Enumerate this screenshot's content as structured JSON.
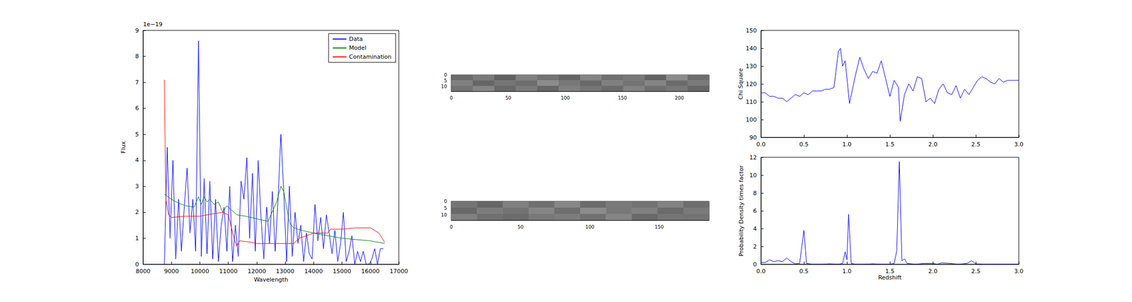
{
  "chart_data": [
    {
      "type": "line",
      "xlabel": "Wavelength",
      "ylabel": "Flux",
      "annotations": [
        "1e−19"
      ],
      "xlim": [
        8000,
        17000
      ],
      "xticks": [
        8000,
        9000,
        10000,
        11000,
        12000,
        13000,
        14000,
        15000,
        16000,
        17000
      ],
      "ylim": [
        0,
        9
      ],
      "yticks": [
        0,
        1,
        2,
        3,
        4,
        5,
        6,
        7,
        8,
        9
      ],
      "grid": false,
      "legend": "upper right",
      "series": [
        {
          "name": "Data",
          "color": "#0000ff",
          "x": [
            8750,
            8850,
            8950,
            9050,
            9150,
            9250,
            9350,
            9450,
            9550,
            9650,
            9750,
            9850,
            9950,
            10050,
            10150,
            10250,
            10350,
            10450,
            10550,
            10650,
            10750,
            10850,
            10950,
            11050,
            11150,
            11250,
            11350,
            11450,
            11550,
            11650,
            11750,
            11850,
            11950,
            12050,
            12150,
            12250,
            12350,
            12450,
            12550,
            12650,
            12750,
            12850,
            12950,
            13050,
            13150,
            13250,
            13350,
            13450,
            13550,
            13650,
            13750,
            13850,
            13950,
            14050,
            14150,
            14250,
            14350,
            14450,
            14550,
            14650,
            14750,
            14850,
            14950,
            15050,
            15150,
            15250,
            15350,
            15450,
            15550,
            15650,
            15750,
            15850,
            15950,
            16050,
            16150,
            16250,
            16350,
            16450
          ],
          "values": [
            0.0,
            4.5,
            1.0,
            4.0,
            0.2,
            2.5,
            0.5,
            2.2,
            3.7,
            1.2,
            2.5,
            0.5,
            8.6,
            0.3,
            3.3,
            0.4,
            3.2,
            0.2,
            2.5,
            0.1,
            1.5,
            2.2,
            0.5,
            3.0,
            0.1,
            1.5,
            0.3,
            3.2,
            2.5,
            4.1,
            1.0,
            3.5,
            0.5,
            4.0,
            1.8,
            0.2,
            2.2,
            0.8,
            2.8,
            0.5,
            2.5,
            5.0,
            2.8,
            0.1,
            3.0,
            0.3,
            2.0,
            0.8,
            1.5,
            0.1,
            1.2,
            0.4,
            0.2,
            2.3,
            0.9,
            1.8,
            0.6,
            1.9,
            1.2,
            0.4,
            1.3,
            0.1,
            0.8,
            2.0,
            0.1,
            0.5,
            1.1,
            0.0,
            0.5,
            0.1,
            0.5,
            0.0,
            0.0,
            0.2,
            0.6,
            0.0,
            0.6,
            0.6
          ]
        },
        {
          "name": "Model",
          "color": "#008000",
          "x": [
            8750,
            9000,
            9250,
            9500,
            9800,
            9950,
            10050,
            10150,
            10250,
            10350,
            10500,
            10650,
            10800,
            10950,
            11100,
            11300,
            11600,
            12000,
            12400,
            12700,
            12850,
            12950,
            13050,
            13150,
            13300,
            13600,
            14000,
            14500,
            15000,
            15500,
            16000,
            16500
          ],
          "values": [
            2.7,
            2.5,
            2.35,
            2.25,
            2.2,
            2.6,
            2.3,
            2.6,
            2.4,
            2.5,
            2.3,
            2.4,
            2.0,
            2.25,
            2.1,
            1.9,
            1.85,
            1.75,
            1.65,
            2.4,
            3.0,
            2.8,
            2.2,
            1.6,
            1.4,
            1.3,
            1.2,
            1.1,
            1.0,
            0.95,
            0.9,
            0.8
          ]
        },
        {
          "name": "Contamination",
          "color": "#ff0000",
          "x": [
            8750,
            8800,
            8900,
            9000,
            9500,
            10000,
            10500,
            10800,
            11000,
            11200,
            11300,
            11400,
            11800,
            12000,
            13000,
            13300,
            13500,
            14000,
            14500,
            14600,
            15000,
            15500,
            16000,
            16300,
            16500
          ],
          "values": [
            7.1,
            2.5,
            1.9,
            1.8,
            1.85,
            1.85,
            1.95,
            2.0,
            1.9,
            1.0,
            0.7,
            0.9,
            0.85,
            0.8,
            0.8,
            0.8,
            1.0,
            1.2,
            1.2,
            1.35,
            1.35,
            1.4,
            1.4,
            1.2,
            0.85
          ]
        }
      ]
    },
    {
      "type": "heatmap",
      "xlim": [
        0,
        226
      ],
      "xticks": [
        0,
        50,
        100,
        150,
        200
      ],
      "ylim": [
        0,
        14
      ],
      "yticks": [
        0,
        5,
        10
      ],
      "cells": [
        [
          0.42,
          0.48,
          0.38,
          0.5,
          0.45,
          0.4,
          0.52,
          0.44,
          0.47,
          0.39,
          0.55,
          0.43
        ],
        [
          0.5,
          0.4,
          0.46,
          0.43,
          0.55,
          0.47,
          0.41,
          0.5,
          0.45,
          0.52,
          0.42,
          0.48
        ],
        [
          0.45,
          0.52,
          0.41,
          0.48,
          0.4,
          0.5,
          0.46,
          0.42,
          0.51,
          0.44,
          0.47,
          0.4
        ]
      ]
    },
    {
      "type": "heatmap",
      "xlim": [
        0,
        186
      ],
      "xticks": [
        0,
        50,
        100,
        150
      ],
      "ylim": [
        0,
        14
      ],
      "yticks": [
        0,
        5,
        10
      ],
      "cells": [
        [
          0.46,
          0.4,
          0.5,
          0.44,
          0.53,
          0.42,
          0.48,
          0.45,
          0.51,
          0.43
        ],
        [
          0.41,
          0.49,
          0.45,
          0.52,
          0.43,
          0.55,
          0.47,
          0.5,
          0.42,
          0.48
        ],
        [
          0.5,
          0.44,
          0.42,
          0.47,
          0.49,
          0.44,
          0.52,
          0.41,
          0.46,
          0.45
        ]
      ]
    },
    {
      "type": "line",
      "ylabel": "Chi Square",
      "color": "#0000ff",
      "xlim": [
        0,
        3
      ],
      "xticks": [
        {
          "value": 0,
          "label": "0.0"
        },
        0.5,
        {
          "value": 1,
          "label": "1.0"
        },
        1.5,
        {
          "value": 2,
          "label": "2.0"
        },
        2.5,
        {
          "value": 3,
          "label": "3.0"
        }
      ],
      "ylim": [
        90,
        150
      ],
      "yticks": [
        90,
        100,
        110,
        120,
        130,
        140,
        150
      ],
      "grid": false,
      "x": [
        0,
        0.05,
        0.1,
        0.15,
        0.2,
        0.25,
        0.3,
        0.35,
        0.4,
        0.45,
        0.5,
        0.55,
        0.6,
        0.65,
        0.7,
        0.75,
        0.8,
        0.85,
        0.9,
        0.925,
        0.95,
        0.98,
        1.03,
        1.1,
        1.15,
        1.2,
        1.25,
        1.3,
        1.35,
        1.4,
        1.45,
        1.5,
        1.55,
        1.6,
        1.62,
        1.67,
        1.72,
        1.77,
        1.82,
        1.87,
        1.92,
        1.97,
        2.02,
        2.07,
        2.12,
        2.17,
        2.22,
        2.27,
        2.32,
        2.37,
        2.42,
        2.47,
        2.52,
        2.57,
        2.62,
        2.67,
        2.72,
        2.77,
        2.82,
        2.87,
        2.92,
        2.97,
        3.0
      ],
      "values": [
        115,
        115,
        113,
        113,
        112,
        112,
        110,
        112,
        114,
        113,
        115,
        114,
        116,
        116,
        116,
        117,
        117,
        118,
        138,
        140,
        130,
        133,
        109,
        125,
        135,
        128,
        123,
        127,
        126,
        133,
        123,
        113,
        122,
        118,
        99,
        114,
        120,
        116,
        124,
        123,
        110,
        112,
        109,
        117,
        120,
        115,
        114,
        119,
        112,
        117,
        114,
        118,
        122,
        124,
        123,
        121,
        120,
        123,
        121,
        122,
        122,
        122,
        122
      ]
    },
    {
      "type": "line",
      "xlabel": "Redshift",
      "ylabel": "Probability Density times factor",
      "color": "#0000ff",
      "xlim": [
        0,
        3
      ],
      "xticks": [
        {
          "value": 0,
          "label": "0.0"
        },
        0.5,
        {
          "value": 1,
          "label": "1.0"
        },
        1.5,
        {
          "value": 2,
          "label": "2.0"
        },
        2.5,
        {
          "value": 3,
          "label": "3.0"
        }
      ],
      "ylim": [
        0,
        12
      ],
      "yticks": [
        0,
        2,
        4,
        6,
        8,
        10,
        12
      ],
      "grid": false,
      "x": [
        0,
        0.05,
        0.1,
        0.15,
        0.2,
        0.25,
        0.3,
        0.35,
        0.4,
        0.45,
        0.5,
        0.53,
        0.6,
        0.7,
        0.8,
        0.9,
        0.95,
        0.98,
        1.0,
        1.02,
        1.05,
        1.1,
        1.2,
        1.3,
        1.4,
        1.5,
        1.55,
        1.58,
        1.61,
        1.64,
        1.67,
        1.7,
        1.8,
        1.9,
        2.0,
        2.05,
        2.1,
        2.2,
        2.3,
        2.4,
        2.45,
        2.5,
        2.6,
        3.0
      ],
      "values": [
        0.2,
        0.2,
        0.5,
        0.3,
        0.4,
        0.3,
        0.7,
        0.3,
        0.05,
        0.1,
        3.8,
        0.1,
        0.0,
        0.0,
        0.05,
        0.0,
        0.1,
        1.4,
        0.5,
        5.6,
        0.1,
        0.0,
        0.0,
        0.05,
        0.0,
        0.0,
        0.1,
        1.5,
        11.5,
        0.4,
        0.6,
        0.1,
        0.0,
        0.1,
        0.1,
        0.0,
        0.15,
        0.1,
        0.0,
        0.1,
        0.4,
        0.05,
        0.0,
        0.0
      ]
    }
  ]
}
